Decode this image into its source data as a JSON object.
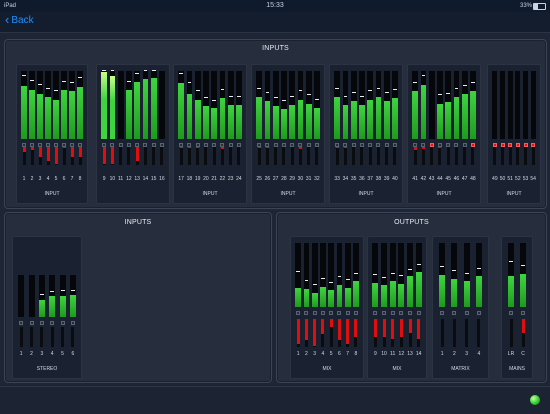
{
  "status": {
    "device": "iPad",
    "time": "15:33",
    "battery": "33%",
    "battery_level": 0.33
  },
  "nav": {
    "back_label": "Back"
  },
  "colors": {
    "meter_green": "#3fd43f",
    "meter_top": "#c8ff8a",
    "gain_red": "#e00f0f",
    "accent": "#1f8fff"
  },
  "inputs_panel": {
    "title": "INPUTS",
    "groups": [
      {
        "label": "INPUT",
        "channels": [
          {
            "n": "1",
            "lvl": 0.78,
            "peak": 0.92,
            "red": 0.25,
            "clip": false
          },
          {
            "n": "2",
            "lvl": 0.72,
            "peak": 0.85,
            "red": 0.15,
            "clip": false
          },
          {
            "n": "3",
            "lvl": 0.66,
            "peak": 0.8,
            "red": 0.55,
            "clip": false
          },
          {
            "n": "4",
            "lvl": 0.62,
            "peak": 0.74,
            "red": 0.75,
            "clip": false
          },
          {
            "n": "5",
            "lvl": 0.58,
            "peak": 0.7,
            "red": 0.95,
            "clip": false
          },
          {
            "n": "6",
            "lvl": 0.72,
            "peak": 0.84,
            "red": 0.05,
            "clip": false
          },
          {
            "n": "7",
            "lvl": 0.7,
            "peak": 0.82,
            "red": 0.55,
            "clip": false
          },
          {
            "n": "8",
            "lvl": 0.77,
            "peak": 0.9,
            "red": 0.55,
            "clip": false
          }
        ]
      },
      {
        "label": "",
        "channels": [
          {
            "n": "9",
            "lvl": 0.98,
            "peak": 1.0,
            "red": 0.92,
            "clip": false
          },
          {
            "n": "10",
            "lvl": 0.92,
            "peak": 1.0,
            "red": 0.95,
            "clip": false
          },
          {
            "n": "11",
            "lvl": 0.0,
            "peak": 0.0,
            "red": 0.0,
            "clip": false
          },
          {
            "n": "12",
            "lvl": 0.72,
            "peak": 0.84,
            "red": 0.0,
            "clip": false
          },
          {
            "n": "13",
            "lvl": 0.84,
            "peak": 0.96,
            "red": 0.78,
            "clip": false
          },
          {
            "n": "14",
            "lvl": 0.88,
            "peak": 1.0,
            "red": 0.0,
            "clip": false
          },
          {
            "n": "15",
            "lvl": 0.9,
            "peak": 1.0,
            "red": 0.0,
            "clip": false
          },
          {
            "n": "16",
            "lvl": 0.0,
            "peak": 0.0,
            "red": 0.0,
            "clip": false
          }
        ]
      },
      {
        "label": "INPUT",
        "channels": [
          {
            "n": "17",
            "lvl": 0.82,
            "peak": 0.95,
            "red": 0.08,
            "clip": false
          },
          {
            "n": "18",
            "lvl": 0.66,
            "peak": 0.82,
            "red": 0.05,
            "clip": false
          },
          {
            "n": "19",
            "lvl": 0.58,
            "peak": 0.7,
            "red": 0.05,
            "clip": false
          },
          {
            "n": "20",
            "lvl": 0.48,
            "peak": 0.6,
            "red": 0.0,
            "clip": false
          },
          {
            "n": "21",
            "lvl": 0.45,
            "peak": 0.56,
            "red": 0.0,
            "clip": false
          },
          {
            "n": "22",
            "lvl": 0.6,
            "peak": 0.72,
            "red": 0.12,
            "clip": false
          },
          {
            "n": "23",
            "lvl": 0.5,
            "peak": 0.62,
            "red": 0.0,
            "clip": false
          },
          {
            "n": "24",
            "lvl": 0.5,
            "peak": 0.62,
            "red": 0.0,
            "clip": false
          }
        ]
      },
      {
        "label": "INPUT",
        "channels": [
          {
            "n": "25",
            "lvl": 0.62,
            "peak": 0.74,
            "red": 0.08,
            "clip": false
          },
          {
            "n": "26",
            "lvl": 0.56,
            "peak": 0.68,
            "red": 0.05,
            "clip": false
          },
          {
            "n": "27",
            "lvl": 0.48,
            "peak": 0.6,
            "red": 0.0,
            "clip": false
          },
          {
            "n": "28",
            "lvl": 0.44,
            "peak": 0.56,
            "red": 0.0,
            "clip": false
          },
          {
            "n": "29",
            "lvl": 0.5,
            "peak": 0.62,
            "red": 0.0,
            "clip": false
          },
          {
            "n": "30",
            "lvl": 0.58,
            "peak": 0.7,
            "red": 0.12,
            "clip": false
          },
          {
            "n": "31",
            "lvl": 0.52,
            "peak": 0.64,
            "red": 0.0,
            "clip": false
          },
          {
            "n": "32",
            "lvl": 0.45,
            "peak": 0.57,
            "red": 0.0,
            "clip": false
          }
        ]
      },
      {
        "label": "INPUT",
        "channels": [
          {
            "n": "33",
            "lvl": 0.62,
            "peak": 0.74,
            "red": 0.08,
            "clip": false
          },
          {
            "n": "34",
            "lvl": 0.5,
            "peak": 0.62,
            "red": 0.05,
            "clip": false
          },
          {
            "n": "35",
            "lvl": 0.56,
            "peak": 0.68,
            "red": 0.0,
            "clip": false
          },
          {
            "n": "36",
            "lvl": 0.5,
            "peak": 0.62,
            "red": 0.0,
            "clip": false
          },
          {
            "n": "37",
            "lvl": 0.58,
            "peak": 0.7,
            "red": 0.0,
            "clip": false
          },
          {
            "n": "38",
            "lvl": 0.62,
            "peak": 0.74,
            "red": 0.0,
            "clip": false
          },
          {
            "n": "39",
            "lvl": 0.56,
            "peak": 0.68,
            "red": 0.0,
            "clip": false
          },
          {
            "n": "40",
            "lvl": 0.6,
            "peak": 0.72,
            "red": 0.0,
            "clip": false
          }
        ]
      },
      {
        "label": "INPUT",
        "channels": [
          {
            "n": "41",
            "lvl": 0.7,
            "peak": 0.82,
            "red": 0.15,
            "clip": false
          },
          {
            "n": "42",
            "lvl": 0.8,
            "peak": 0.92,
            "red": 0.12,
            "clip": false
          },
          {
            "n": "43",
            "lvl": 0.0,
            "peak": 0.0,
            "red": 0.0,
            "clip": true
          },
          {
            "n": "44",
            "lvl": 0.52,
            "peak": 0.64,
            "red": 0.08,
            "clip": false
          },
          {
            "n": "45",
            "lvl": 0.54,
            "peak": 0.66,
            "red": 0.0,
            "clip": false
          },
          {
            "n": "46",
            "lvl": 0.62,
            "peak": 0.74,
            "red": 0.0,
            "clip": false
          },
          {
            "n": "47",
            "lvl": 0.66,
            "peak": 0.78,
            "red": 0.0,
            "clip": false
          },
          {
            "n": "48",
            "lvl": 0.7,
            "peak": 0.82,
            "red": 0.0,
            "clip": true
          }
        ]
      },
      {
        "label": "INPUT",
        "channels": [
          {
            "n": "49",
            "lvl": 0.0,
            "peak": 0.0,
            "red": 0.0,
            "clip": true
          },
          {
            "n": "50",
            "lvl": 0.0,
            "peak": 0.0,
            "red": 0.0,
            "clip": true
          },
          {
            "n": "51",
            "lvl": 0.0,
            "peak": 0.0,
            "red": 0.0,
            "clip": true
          },
          {
            "n": "52",
            "lvl": 0.0,
            "peak": 0.0,
            "red": 0.0,
            "clip": true
          },
          {
            "n": "53",
            "lvl": 0.0,
            "peak": 0.0,
            "red": 0.0,
            "clip": true
          },
          {
            "n": "54",
            "lvl": 0.0,
            "peak": 0.0,
            "red": 0.0,
            "clip": true
          }
        ]
      }
    ]
  },
  "stereo_panel": {
    "title": "INPUTS",
    "groups": [
      {
        "label": "STEREO",
        "channels": [
          {
            "n": "1",
            "lvl": 0.0,
            "peak": 0.0,
            "red": 0.0,
            "clip": false
          },
          {
            "n": "2",
            "lvl": 0.0,
            "peak": 0.0,
            "red": 0.0,
            "clip": false
          },
          {
            "n": "3",
            "lvl": 0.4,
            "peak": 0.52,
            "red": 0.0,
            "clip": false
          },
          {
            "n": "4",
            "lvl": 0.5,
            "peak": 0.6,
            "red": 0.0,
            "clip": false
          },
          {
            "n": "5",
            "lvl": 0.5,
            "peak": 0.62,
            "red": 0.0,
            "clip": false
          },
          {
            "n": "6",
            "lvl": 0.52,
            "peak": 0.62,
            "red": 0.0,
            "clip": false
          }
        ]
      }
    ]
  },
  "outputs_panel": {
    "title": "OUTPUTS",
    "groups": [
      {
        "label": "MIX",
        "channels": [
          {
            "n": "1",
            "lvl": 0.3,
            "peak": 0.55,
            "red": 0.9,
            "clip": false
          },
          {
            "n": "2",
            "lvl": 0.28,
            "peak": 0.4,
            "red": 0.75,
            "clip": false
          },
          {
            "n": "3",
            "lvl": 0.22,
            "peak": 0.34,
            "red": 0.95,
            "clip": false
          },
          {
            "n": "4",
            "lvl": 0.32,
            "peak": 0.44,
            "red": 0.55,
            "clip": false
          },
          {
            "n": "5",
            "lvl": 0.26,
            "peak": 0.38,
            "red": 0.3,
            "clip": false
          },
          {
            "n": "6",
            "lvl": 0.35,
            "peak": 0.47,
            "red": 0.75,
            "clip": false
          },
          {
            "n": "7",
            "lvl": 0.3,
            "peak": 0.42,
            "red": 0.9,
            "clip": false
          },
          {
            "n": "8",
            "lvl": 0.4,
            "peak": 0.52,
            "red": 0.65,
            "clip": false
          }
        ]
      },
      {
        "label": "MIX",
        "channels": [
          {
            "n": "9",
            "lvl": 0.38,
            "peak": 0.5,
            "red": 0.65,
            "clip": false
          },
          {
            "n": "10",
            "lvl": 0.34,
            "peak": 0.46,
            "red": 0.65,
            "clip": false
          },
          {
            "n": "11",
            "lvl": 0.4,
            "peak": 0.52,
            "red": 0.7,
            "clip": false
          },
          {
            "n": "12",
            "lvl": 0.36,
            "peak": 0.48,
            "red": 0.65,
            "clip": false
          },
          {
            "n": "13",
            "lvl": 0.48,
            "peak": 0.58,
            "red": 0.5,
            "clip": false
          },
          {
            "n": "14",
            "lvl": 0.54,
            "peak": 0.66,
            "red": 0.7,
            "clip": false
          }
        ]
      },
      {
        "label": "MATRIX",
        "channels": [
          {
            "n": "1",
            "lvl": 0.5,
            "peak": 0.62,
            "red": 0.0,
            "clip": false
          },
          {
            "n": "2",
            "lvl": 0.44,
            "peak": 0.56,
            "red": 0.0,
            "clip": false
          },
          {
            "n": "3",
            "lvl": 0.4,
            "peak": 0.52,
            "red": 0.0,
            "clip": false
          },
          {
            "n": "4",
            "lvl": 0.48,
            "peak": 0.6,
            "red": 0.0,
            "clip": false
          }
        ]
      },
      {
        "label": "MAINS",
        "channels": [
          {
            "n": "LR",
            "lvl": 0.48,
            "peak": 0.7,
            "red": 0.0,
            "clip": false
          },
          {
            "n": "C",
            "lvl": 0.52,
            "peak": 0.64,
            "red": 0.5,
            "clip": false
          }
        ]
      }
    ]
  }
}
